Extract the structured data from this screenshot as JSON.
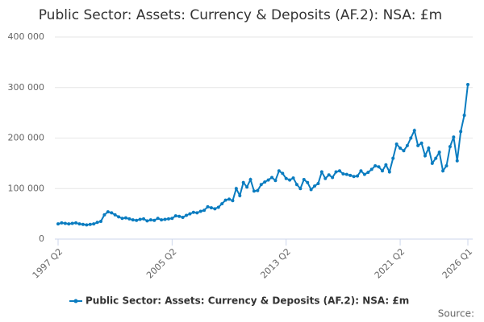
{
  "chart_data": {
    "type": "line",
    "title": "Public Sector: Assets: Currency & Deposits (AF.2): NSA: £m",
    "source_label": "Source:",
    "categories": [
      "1997 Q2",
      null,
      null,
      null,
      null,
      null,
      null,
      null,
      null,
      null,
      null,
      null,
      null,
      null,
      null,
      null,
      null,
      null,
      null,
      null,
      null,
      null,
      null,
      null,
      null,
      null,
      null,
      null,
      null,
      null,
      null,
      null,
      "2005 Q2",
      null,
      null,
      null,
      null,
      null,
      null,
      null,
      null,
      null,
      null,
      null,
      null,
      null,
      null,
      null,
      null,
      null,
      null,
      null,
      null,
      null,
      null,
      null,
      null,
      null,
      null,
      null,
      null,
      null,
      null,
      null,
      "2013 Q2",
      null,
      null,
      null,
      null,
      null,
      null,
      null,
      null,
      null,
      null,
      null,
      null,
      null,
      null,
      null,
      null,
      null,
      null,
      null,
      null,
      null,
      null,
      null,
      null,
      null,
      null,
      null,
      null,
      null,
      null,
      null,
      "2021 Q2",
      null,
      null,
      null,
      null,
      null,
      null,
      null,
      null,
      null,
      null,
      null,
      null,
      null,
      null,
      null,
      null,
      null,
      null,
      "2026 Q1"
    ],
    "series": [
      {
        "name": "Public Sector: Assets: Currency & Deposits (AF.2): NSA: £m",
        "color": "#0a7cc0",
        "values": [
          30000,
          32000,
          31000,
          30000,
          31000,
          32000,
          30000,
          29000,
          28000,
          29000,
          30000,
          33000,
          35000,
          48000,
          54000,
          52000,
          48000,
          44000,
          41000,
          42000,
          40000,
          38000,
          37000,
          39000,
          40000,
          36000,
          38000,
          37000,
          41000,
          38000,
          39000,
          40000,
          41000,
          46000,
          45000,
          43000,
          47000,
          50000,
          53000,
          52000,
          55000,
          57000,
          64000,
          62000,
          60000,
          63000,
          70000,
          77000,
          79000,
          76000,
          100000,
          86000,
          112000,
          103000,
          118000,
          95000,
          96000,
          108000,
          113000,
          117000,
          122000,
          116000,
          135000,
          130000,
          120000,
          117000,
          121000,
          108000,
          100000,
          118000,
          112000,
          98000,
          105000,
          110000,
          133000,
          120000,
          127000,
          122000,
          133000,
          135000,
          129000,
          128000,
          126000,
          124000,
          125000,
          135000,
          128000,
          132000,
          138000,
          145000,
          143000,
          135000,
          147000,
          133000,
          160000,
          188000,
          180000,
          175000,
          185000,
          200000,
          215000,
          185000,
          190000,
          165000,
          180000,
          150000,
          160000,
          172000,
          135000,
          145000,
          183000,
          202000,
          155000,
          213000,
          245000,
          306000
        ]
      }
    ],
    "ylim": [
      0,
      400000
    ],
    "yticks": [
      0,
      {
        "value": 100000,
        "label": "100 000"
      },
      {
        "value": 200000,
        "label": "200 000"
      },
      {
        "value": 300000,
        "label": "300 000"
      },
      {
        "value": 400000,
        "label": "400 000"
      }
    ],
    "grid": true
  }
}
